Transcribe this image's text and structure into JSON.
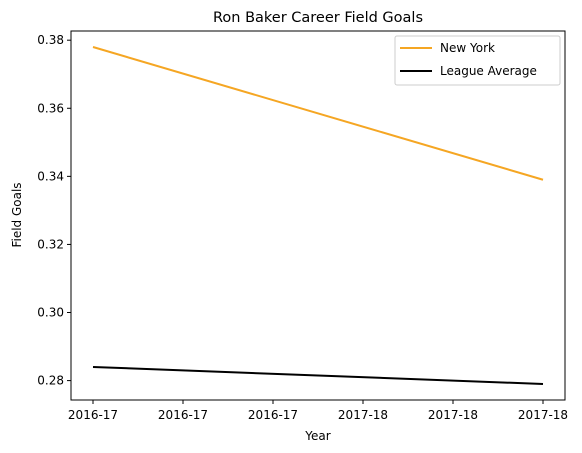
{
  "chart_data": {
    "type": "line",
    "title": "Ron Baker  Career Field Goals",
    "xlabel": "Year",
    "ylabel": "Field Goals",
    "x": [
      0,
      1
    ],
    "x_ticks": [
      "2016-17",
      "2016-17",
      "2016-17",
      "2017-18",
      "2017-18",
      "2017-18"
    ],
    "ylim": [
      0.2743,
      0.3827
    ],
    "y_ticks": [
      "0.28",
      "0.30",
      "0.32",
      "0.34",
      "0.36",
      "0.38"
    ],
    "grid": false,
    "legend_position": "top-right",
    "series": [
      {
        "name": "New York",
        "values": [
          0.378,
          0.339
        ],
        "color": "#f5a623"
      },
      {
        "name": "League Average",
        "values": [
          0.284,
          0.279
        ],
        "color": "#000000"
      }
    ]
  }
}
